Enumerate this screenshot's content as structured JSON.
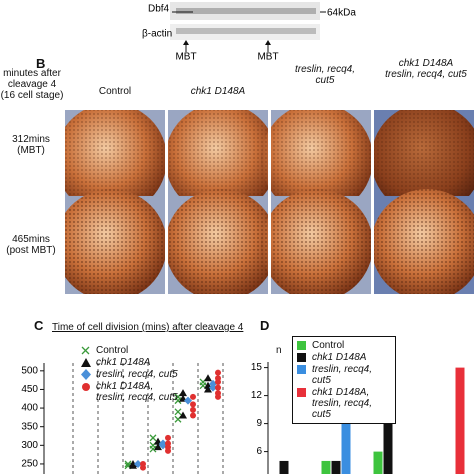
{
  "blot": {
    "bands": [
      "Dbf4",
      "β-actin"
    ],
    "size_marker": "64kDa",
    "stage_markers": [
      "MBT",
      "MBT"
    ]
  },
  "panel_b": {
    "label": "B",
    "row_header": "minutes after cleavage 4 (16 cell stage)",
    "columns": [
      "Control",
      "chk1 D148A",
      "treslin, recq4, cut5",
      "chk1 D148A treslin, recq4, cut5"
    ],
    "rows": [
      "312mins (MBT)",
      "465mins (post MBT)"
    ]
  },
  "chart_data": [
    {
      "type": "scatter",
      "panel": "C",
      "title": "Time of cell division (mins) after cleavage 4",
      "categories": [
        null,
        null,
        null,
        null,
        null,
        null
      ],
      "ylim": [
        223,
        521
      ],
      "yticks": [
        250,
        300,
        350,
        400,
        450,
        500
      ],
      "series": [
        {
          "name": "Control",
          "color": "#3a9a3a",
          "marker": "x",
          "values": [
            null,
            null,
            [
              250,
              245
            ],
            [
              320,
              300,
              290
            ],
            [
              430,
              420,
              390,
              370
            ],
            [
              470,
              460
            ]
          ]
        },
        {
          "name": "chk1 D148A",
          "color": "#111111",
          "marker": "triangle",
          "values": [
            null,
            null,
            [
              250,
              245
            ],
            [
              310,
              295
            ],
            [
              440,
              425,
              380
            ],
            [
              480,
              460,
              450
            ]
          ]
        },
        {
          "name": "treslin, recq4, cut5",
          "color": "#4a90d9",
          "marker": "diamond",
          "values": [
            null,
            null,
            [
              250
            ],
            [
              305,
              300
            ],
            [
              420
            ],
            [
              465,
              455
            ]
          ]
        },
        {
          "name": "chk1 D148A, treslin, recq4, cut5",
          "color": "#e03030",
          "marker": "circle",
          "values": [
            null,
            null,
            [
              250,
              240
            ],
            [
              320,
              305,
              295,
              285
            ],
            [
              430,
              410,
              395,
              380
            ],
            [
              495,
              480,
              470,
              455,
              440,
              430
            ]
          ]
        }
      ]
    },
    {
      "type": "bar",
      "panel": "D",
      "ylabel": "n",
      "categories": [
        null,
        null,
        null,
        null
      ],
      "ylim": [
        3.6,
        15.6
      ],
      "yticks": [
        6,
        9,
        12,
        15
      ],
      "series": [
        {
          "name": "Control",
          "color": "#3ec43e",
          "values": [
            null,
            5,
            6,
            null
          ]
        },
        {
          "name": "chk1 D148A",
          "color": "#111111",
          "values": [
            5,
            5,
            9,
            null
          ]
        },
        {
          "name": "treslin, recq4, cut5",
          "color": "#3a8ee0",
          "values": [
            null,
            10,
            null,
            null
          ]
        },
        {
          "name": "chk1 D148A, treslin, recq4, cut5",
          "color": "#e8303a",
          "values": [
            null,
            null,
            null,
            15
          ]
        }
      ]
    }
  ]
}
